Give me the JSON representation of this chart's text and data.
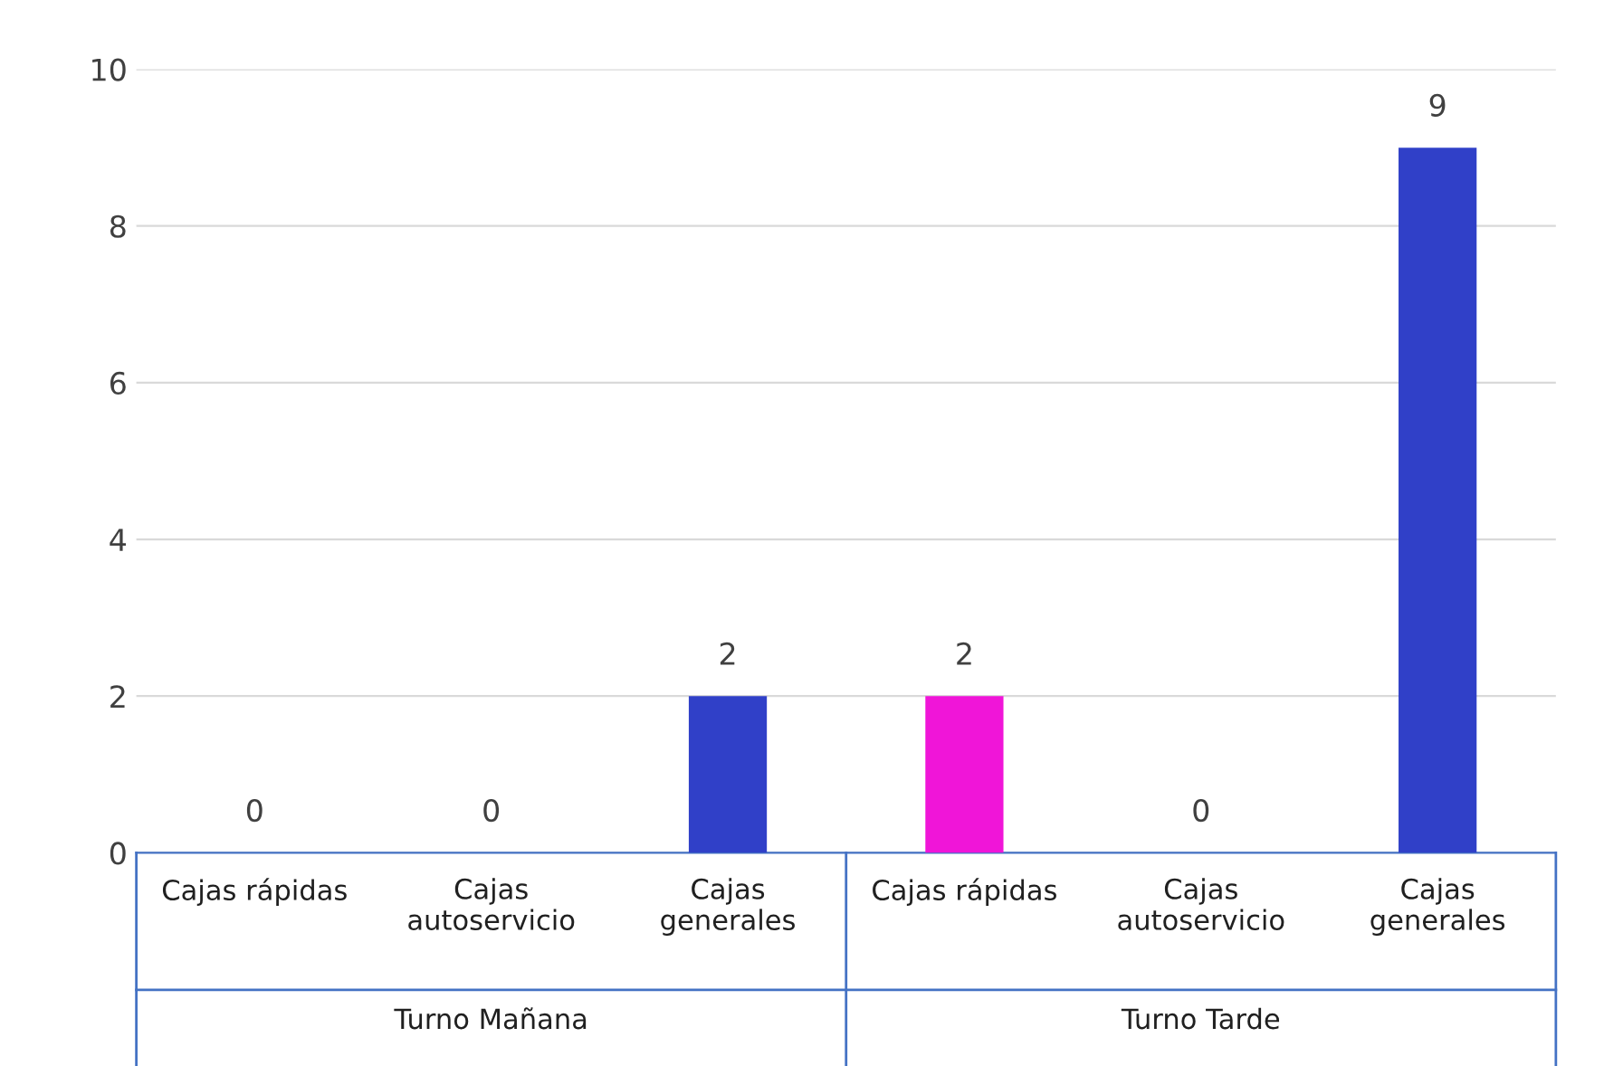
{
  "chart_data": {
    "type": "bar",
    "categories": [
      "Cajas rápidas",
      "Cajas autoservicio",
      "Cajas generales",
      "Cajas rápidas",
      "Cajas autoservicio",
      "Cajas generales"
    ],
    "values": [
      0,
      0,
      2,
      2,
      0,
      9
    ],
    "colors": [
      "#3040c8",
      "#3040c8",
      "#3040c8",
      "#f015d8",
      "#3040c8",
      "#3040c8"
    ],
    "ylim": [
      0,
      10
    ],
    "yticks": [
      0,
      2,
      4,
      6,
      8,
      10
    ],
    "grid": "y",
    "data_labels": true,
    "annotations": [
      "Turno Mañana",
      "Turno Tarde"
    ]
  }
}
